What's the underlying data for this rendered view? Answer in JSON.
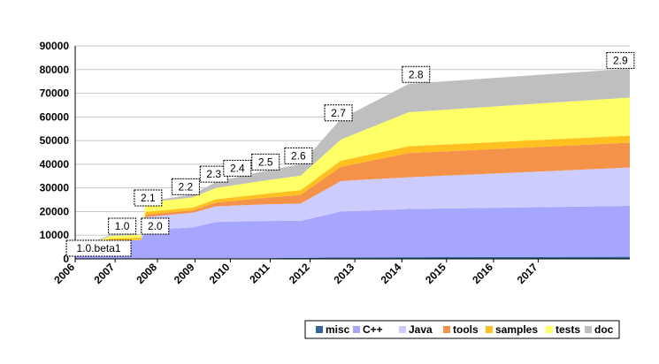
{
  "chart_data": {
    "type": "area",
    "stacked": true,
    "ylim": [
      0,
      90000
    ],
    "y_ticks": [
      0,
      10000,
      20000,
      30000,
      40000,
      50000,
      60000,
      70000,
      80000,
      90000
    ],
    "x_tick_labels": [
      "2006",
      "2007",
      "2008",
      "2009",
      "2010",
      "2011",
      "2012",
      "2013",
      "2014",
      "2015",
      "2016",
      "2017"
    ],
    "x_time": [
      2006.0,
      2006.75,
      2007.4,
      2007.5,
      2008.5,
      2009.0,
      2010.0,
      2010.8,
      2011.65,
      2013.1,
      2017.8
    ],
    "series": [
      {
        "name": "misc",
        "color": "#336699",
        "values": [
          0,
          0,
          0,
          300,
          300,
          300,
          300,
          400,
          600,
          700,
          900
        ]
      },
      {
        "name": "C++",
        "color": "#a6a6ff",
        "values": [
          2800,
          7600,
          8000,
          11900,
          13000,
          15300,
          15700,
          15700,
          19400,
          20400,
          21500
        ]
      },
      {
        "name": "Java",
        "color": "#ccccff",
        "values": [
          0,
          0,
          0,
          5500,
          6200,
          6600,
          7000,
          7300,
          12900,
          13400,
          16200
        ]
      },
      {
        "name": "tools",
        "color": "#f4924a",
        "values": [
          0,
          0,
          0,
          1000,
          1000,
          1600,
          2700,
          3700,
          6000,
          10200,
          10500
        ]
      },
      {
        "name": "samples",
        "color": "#ffc020",
        "values": [
          600,
          1000,
          1000,
          1200,
          1200,
          1400,
          1700,
          2000,
          2600,
          2900,
          3000
        ]
      },
      {
        "name": "tests",
        "color": "#ffff66",
        "values": [
          300,
          1100,
          1200,
          3800,
          4300,
          4800,
          5600,
          6100,
          8900,
          14400,
          16100
        ]
      },
      {
        "name": "doc",
        "color": "#bfbfbf",
        "values": [
          600,
          400,
          400,
          500,
          1200,
          2600,
          4000,
          4800,
          8700,
          12000,
          12200
        ]
      }
    ],
    "version_labels": [
      {
        "text": "1.0.beta1",
        "x": 2006.5
      },
      {
        "text": "1.0",
        "x": 2007.0
      },
      {
        "text": "2.0",
        "x": 2007.7
      },
      {
        "text": "2.1",
        "x": 2007.55
      },
      {
        "text": "2.2",
        "x": 2008.35
      },
      {
        "text": "2.3",
        "x": 2008.95
      },
      {
        "text": "2.4",
        "x": 2009.45
      },
      {
        "text": "2.5",
        "x": 2010.05
      },
      {
        "text": "2.6",
        "x": 2010.75
      },
      {
        "text": "2.7",
        "x": 2011.6
      },
      {
        "text": "2.8",
        "x": 2013.25
      },
      {
        "text": "2.9",
        "x": 2017.6
      }
    ],
    "grid": true,
    "legend_position": "bottom-right"
  }
}
